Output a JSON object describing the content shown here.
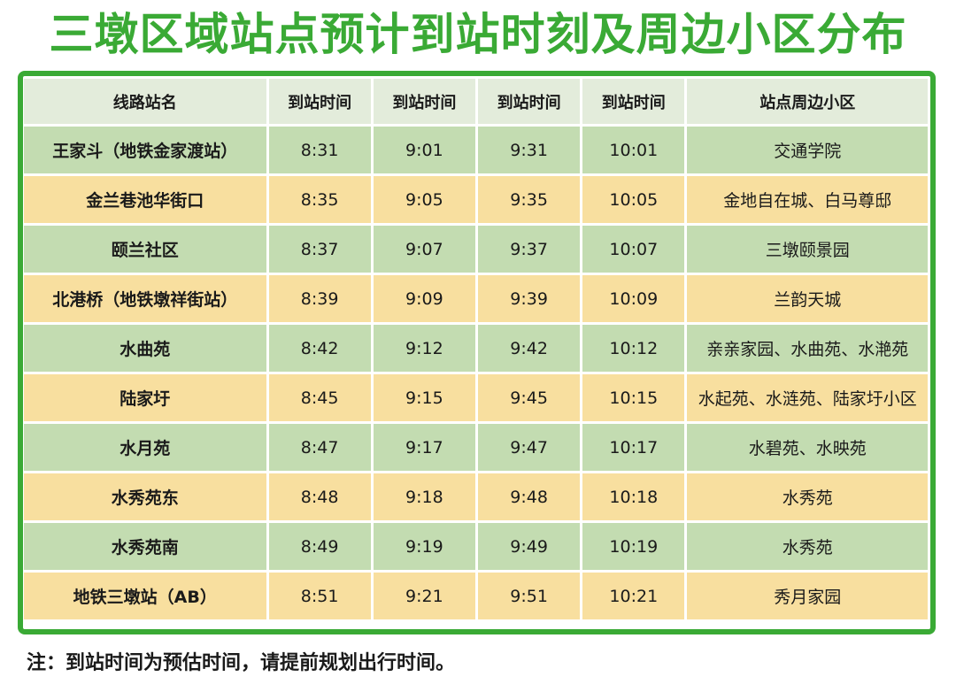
{
  "title": "三墩区域站点预计到站时刻及周边小区分布",
  "headers": [
    "线路站名",
    "到站时间",
    "到站时间",
    "到站时间",
    "到站时间",
    "站点周边小区"
  ],
  "rows": [
    {
      "station": "王家斗（地铁金家渡站）",
      "times": [
        "8:31",
        "9:01",
        "9:31",
        "10:01"
      ],
      "communities": "交通学院"
    },
    {
      "station": "金兰巷池华街口",
      "times": [
        "8:35",
        "9:05",
        "9:35",
        "10:05"
      ],
      "communities": "金地自在城、白马尊邸"
    },
    {
      "station": "颐兰社区",
      "times": [
        "8:37",
        "9:07",
        "9:37",
        "10:07"
      ],
      "communities": "三墩颐景园"
    },
    {
      "station": "北港桥（地铁墩祥街站）",
      "times": [
        "8:39",
        "9:09",
        "9:39",
        "10:09"
      ],
      "communities": "兰韵天城"
    },
    {
      "station": "水曲苑",
      "times": [
        "8:42",
        "9:12",
        "9:42",
        "10:12"
      ],
      "communities": "亲亲家园、水曲苑、水滟苑"
    },
    {
      "station": "陆家圩",
      "times": [
        "8:45",
        "9:15",
        "9:45",
        "10:15"
      ],
      "communities": "水起苑、水涟苑、陆家圩小区"
    },
    {
      "station": "水月苑",
      "times": [
        "8:47",
        "9:17",
        "9:47",
        "10:17"
      ],
      "communities": "水碧苑、水映苑"
    },
    {
      "station": "水秀苑东",
      "times": [
        "8:48",
        "9:18",
        "9:48",
        "10:18"
      ],
      "communities": "水秀苑"
    },
    {
      "station": "水秀苑南",
      "times": [
        "8:49",
        "9:19",
        "9:49",
        "10:19"
      ],
      "communities": "水秀苑"
    },
    {
      "station": "地铁三墩站（AB）",
      "times": [
        "8:51",
        "9:21",
        "9:51",
        "10:21"
      ],
      "communities": "秀月家园"
    }
  ],
  "note": "注：到站时间为预估时间，请提前规划出行时间。",
  "colors": {
    "accent_green": "#3aaa35",
    "header_bg": "#e3ecdb",
    "row_green": "#c3dcb1",
    "row_yellow": "#f8df9f"
  }
}
